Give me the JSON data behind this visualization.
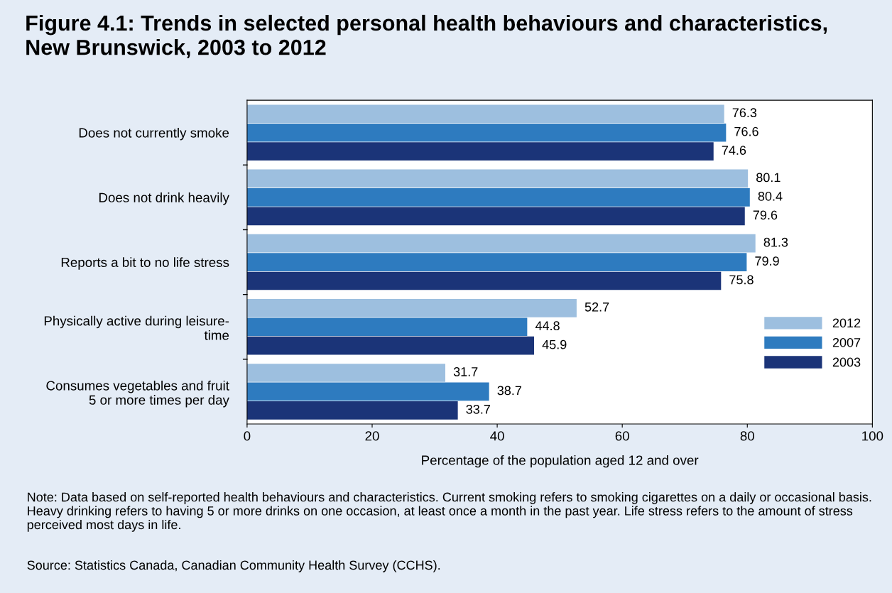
{
  "chart_data": {
    "type": "bar",
    "orientation": "horizontal",
    "title": "Figure 4.1: Trends in selected personal health behaviours and characteristics,\nNew Brunswick, 2003 to 2012",
    "xlabel": "Percentage of the population aged 12 and over",
    "categories": [
      "Does not currently smoke",
      "Does not drink heavily",
      "Reports a bit to no life stress",
      "Physically active during leisure-\ntime",
      "Consumes vegetables and fruit\n5 or more times per day"
    ],
    "series": [
      {
        "name": "2012",
        "color": "#9dbfdf",
        "values": [
          76.3,
          80.1,
          81.3,
          52.7,
          31.7
        ]
      },
      {
        "name": "2007",
        "color": "#2e7bbf",
        "values": [
          76.6,
          80.4,
          79.9,
          44.8,
          38.7
        ]
      },
      {
        "name": "2003",
        "color": "#1b3478",
        "values": [
          74.6,
          79.6,
          75.8,
          45.9,
          33.7
        ]
      }
    ],
    "xlim": [
      0,
      100
    ],
    "xticks": [
      0,
      20,
      40,
      60,
      80,
      100
    ],
    "data_labels": true,
    "legend": "right",
    "grid": false,
    "annotations": [
      "Note: Data based on self-reported health behaviours and characteristics. Current smoking refers to smoking cigarettes on a daily or occasional basis. Heavy drinking refers to having 5 or more drinks on one occasion, at least once a month in the past year. Life stress refers to the amount of stress perceived most days in life.",
      "Source: Statistics Canada, Canadian Community Health Survey (CCHS)."
    ]
  }
}
